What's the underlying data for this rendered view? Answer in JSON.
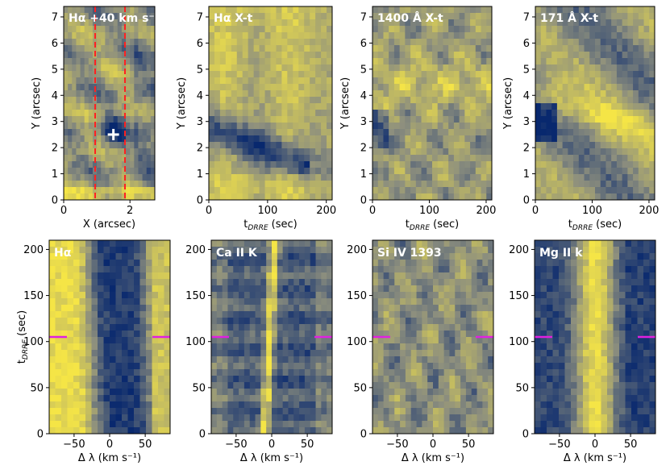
{
  "colors": {
    "dark": "#0b2a6e",
    "mid": "#8d8f7e",
    "light": "#f3e44a",
    "marker_dash": "#ff2020",
    "marker_tick": "#e020e0",
    "cross": "#ffffff"
  },
  "chart_data": [
    {
      "type": "heatmap",
      "title": "Hα +40 km s⁻¹",
      "xlabel": "X (arcsec)",
      "ylabel": "Y (arcsec)",
      "xlim": [
        0,
        2.75
      ],
      "ylim": [
        0,
        7.4
      ],
      "xticks": [
        "0",
        "2"
      ],
      "yticks": [
        "0",
        "1",
        "2",
        "3",
        "4",
        "5",
        "6",
        "7"
      ],
      "xtick_values": [
        0,
        2
      ],
      "ytick_values": [
        0,
        1,
        2,
        3,
        4,
        5,
        6,
        7
      ],
      "vlines": [
        0.95,
        1.85
      ],
      "cross": [
        1.5,
        2.5
      ]
    },
    {
      "type": "heatmap",
      "title": "Hα X-t",
      "xlabel": "tDRRE (sec)",
      "ylabel": "Y (arcsec)",
      "xlim": [
        0,
        210
      ],
      "ylim": [
        0,
        7.4
      ],
      "xticks": [
        "0",
        "100",
        "200"
      ],
      "yticks": [
        "0",
        "1",
        "2",
        "3",
        "4",
        "5",
        "6",
        "7"
      ],
      "xtick_values": [
        0,
        100,
        200
      ],
      "ytick_values": [
        0,
        1,
        2,
        3,
        4,
        5,
        6,
        7
      ]
    },
    {
      "type": "heatmap",
      "title": "1400 Å X-t",
      "xlabel": "tDRRE (sec)",
      "ylabel": "Y (arcsec)",
      "xlim": [
        0,
        210
      ],
      "ylim": [
        0,
        7.4
      ],
      "xticks": [
        "0",
        "100",
        "200"
      ],
      "yticks": [
        "0",
        "1",
        "2",
        "3",
        "4",
        "5",
        "6",
        "7"
      ],
      "xtick_values": [
        0,
        100,
        200
      ],
      "ytick_values": [
        0,
        1,
        2,
        3,
        4,
        5,
        6,
        7
      ]
    },
    {
      "type": "heatmap",
      "title": "171 Å X-t",
      "xlabel": "tDRRE (sec)",
      "ylabel": "Y (arcsec)",
      "xlim": [
        0,
        210
      ],
      "ylim": [
        0,
        7.4
      ],
      "xticks": [
        "0",
        "100",
        "200"
      ],
      "yticks": [
        "0",
        "1",
        "2",
        "3",
        "4",
        "5",
        "6",
        "7"
      ],
      "xtick_values": [
        0,
        100,
        200
      ],
      "ytick_values": [
        0,
        1,
        2,
        3,
        4,
        5,
        6,
        7
      ]
    },
    {
      "type": "heatmap",
      "title": "Hα",
      "xlabel": "Δ λ (km s⁻¹)",
      "ylabel": "tDRRE (sec)",
      "xlim": [
        -85,
        85
      ],
      "ylim": [
        0,
        210
      ],
      "xticks": [
        "−50",
        "0",
        "50"
      ],
      "yticks": [
        "0",
        "50",
        "100",
        "150",
        "200"
      ],
      "xtick_values": [
        -50,
        0,
        50
      ],
      "ytick_values": [
        0,
        50,
        100,
        150,
        200
      ],
      "marker_t": 105
    },
    {
      "type": "heatmap",
      "title": "Ca II K",
      "xlabel": "Δ λ (km s⁻¹)",
      "ylabel": "",
      "xlim": [
        -85,
        85
      ],
      "ylim": [
        0,
        210
      ],
      "xticks": [
        "−50",
        "0",
        "50"
      ],
      "yticks": [
        "0",
        "50",
        "100",
        "150",
        "200"
      ],
      "xtick_values": [
        -50,
        0,
        50
      ],
      "ytick_values": [
        0,
        50,
        100,
        150,
        200
      ],
      "marker_t": 105
    },
    {
      "type": "heatmap",
      "title": "Si IV 1393",
      "xlabel": "Δ λ (km s⁻¹)",
      "ylabel": "",
      "xlim": [
        -85,
        85
      ],
      "ylim": [
        0,
        210
      ],
      "xticks": [
        "−50",
        "0",
        "50"
      ],
      "yticks": [
        "0",
        "50",
        "100",
        "150",
        "200"
      ],
      "xtick_values": [
        -50,
        0,
        50
      ],
      "ytick_values": [
        0,
        50,
        100,
        150,
        200
      ],
      "marker_t": 105
    },
    {
      "type": "heatmap",
      "title": "Mg II k",
      "xlabel": "Δ λ (km s⁻¹)",
      "ylabel": "",
      "xlim": [
        -85,
        85
      ],
      "ylim": [
        0,
        210
      ],
      "xticks": [
        "−50",
        "0",
        "50"
      ],
      "yticks": [
        "0",
        "50",
        "100",
        "150",
        "200"
      ],
      "xtick_values": [
        -50,
        0,
        50
      ],
      "ytick_values": [
        0,
        50,
        100,
        150,
        200
      ],
      "marker_t": 105
    }
  ]
}
